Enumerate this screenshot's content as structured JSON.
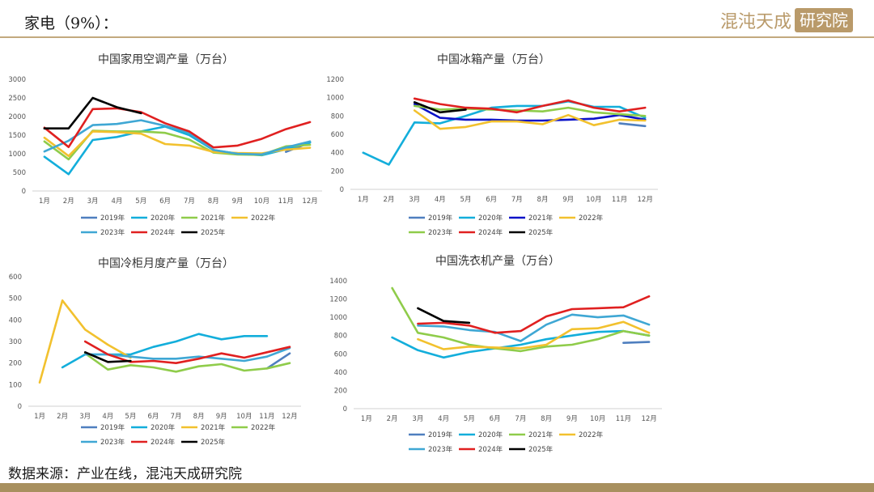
{
  "header": {
    "title": "家电（9%）："
  },
  "brand": {
    "name": "混沌天成",
    "box": "研究院"
  },
  "footer": {
    "source": "数据来源：产业在线，混沌天成研究院"
  },
  "colors": {
    "2019年": "#4f7fbf",
    "2020年": "#13aedb",
    "2021年": "#0b12c8",
    "2022年": "#f2c12e",
    "2023年": "#3fa7d4",
    "2024年": "#e02020",
    "2025年": "#000000",
    "green": "#8fcc4a"
  },
  "chart_data": [
    {
      "type": "line",
      "title": "中国家用空调产量（万台）",
      "categories": [
        "1月",
        "2月",
        "3月",
        "4月",
        "5月",
        "6月",
        "7月",
        "8月",
        "9月",
        "10月",
        "11月",
        "12月"
      ],
      "yticks": [
        0,
        500,
        1000,
        1500,
        2000,
        2500,
        3000
      ],
      "ylim": [
        0,
        3000
      ],
      "legend_rows": [
        [
          "2019年",
          "2020年",
          "2021年",
          "2022年"
        ],
        [
          "2023年",
          "2024年",
          "2025年"
        ]
      ],
      "series": [
        {
          "name": "2019年",
          "color": "#4f7fbf",
          "values": [
            null,
            null,
            null,
            null,
            null,
            null,
            null,
            null,
            null,
            null,
            1050,
            1300
          ]
        },
        {
          "name": "2020年",
          "color": "#13aedb",
          "values": [
            920,
            450,
            1370,
            1450,
            1600,
            1730,
            1500,
            1100,
            1000,
            960,
            1120,
            1300
          ]
        },
        {
          "name": "2021年",
          "color": "#8fcc4a",
          "values": [
            1330,
            850,
            1620,
            1600,
            1600,
            1560,
            1380,
            1030,
            980,
            970,
            1200,
            1240
          ]
        },
        {
          "name": "2022年",
          "color": "#f2c12e",
          "values": [
            1430,
            940,
            1600,
            1580,
            1540,
            1260,
            1220,
            1050,
            1020,
            1010,
            1110,
            1160
          ]
        },
        {
          "name": "2023年",
          "color": "#3fa7d4",
          "values": [
            1060,
            1350,
            1770,
            1800,
            1900,
            1750,
            1560,
            1100,
            1000,
            980,
            1170,
            1330
          ]
        },
        {
          "name": "2024年",
          "color": "#e02020",
          "values": [
            1700,
            1180,
            2200,
            2220,
            2120,
            1820,
            1600,
            1170,
            1220,
            1400,
            1660,
            1850
          ]
        },
        {
          "name": "2025年",
          "color": "#000000",
          "values": [
            1680,
            1680,
            2500,
            2250,
            2090,
            null,
            null,
            null,
            null,
            null,
            null,
            null
          ]
        }
      ]
    },
    {
      "type": "line",
      "title": "中国冰箱产量（万台）",
      "categories": [
        "1月",
        "2月",
        "3月",
        "4月",
        "5月",
        "6月",
        "7月",
        "8月",
        "9月",
        "10月",
        "11月",
        "12月"
      ],
      "yticks": [
        0,
        200,
        400,
        600,
        800,
        1000,
        1200
      ],
      "ylim": [
        0,
        1200
      ],
      "legend_rows": [
        [
          "2019年",
          "2020年",
          "2021年",
          "2022年"
        ],
        [
          "2023年",
          "2024年",
          "2025年"
        ]
      ],
      "series": [
        {
          "name": "2019年",
          "color": "#4f7fbf",
          "values": [
            null,
            null,
            null,
            null,
            null,
            null,
            null,
            null,
            null,
            null,
            720,
            690
          ]
        },
        {
          "name": "2020年",
          "color": "#13aedb",
          "values": [
            400,
            270,
            730,
            720,
            800,
            890,
            910,
            910,
            960,
            900,
            900,
            780
          ]
        },
        {
          "name": "2021年",
          "color": "#0b12c8",
          "values": [
            null,
            null,
            930,
            780,
            760,
            760,
            750,
            750,
            760,
            770,
            810,
            760
          ]
        },
        {
          "name": "2022年",
          "color": "#f2c12e",
          "values": [
            null,
            null,
            860,
            660,
            680,
            740,
            740,
            710,
            810,
            700,
            760,
            750
          ]
        },
        {
          "name": "2023年",
          "color": "#8fcc4a",
          "values": [
            null,
            null,
            910,
            870,
            880,
            870,
            860,
            850,
            890,
            840,
            820,
            800
          ]
        },
        {
          "name": "2024年",
          "color": "#e02020",
          "values": [
            null,
            null,
            990,
            930,
            890,
            880,
            840,
            910,
            970,
            890,
            850,
            890
          ]
        },
        {
          "name": "2025年",
          "color": "#000000",
          "values": [
            null,
            null,
            950,
            840,
            870,
            null,
            null,
            null,
            null,
            null,
            null,
            null
          ]
        }
      ]
    },
    {
      "type": "line",
      "title": "中国冷柜月度产量（万台）",
      "categories": [
        "1月",
        "2月",
        "3月",
        "4月",
        "5月",
        "6月",
        "7月",
        "8月",
        "9月",
        "10月",
        "11月",
        "12月"
      ],
      "yticks": [
        0,
        100,
        200,
        300,
        400,
        500,
        600
      ],
      "ylim": [
        0,
        600
      ],
      "legend_rows": [
        [
          "2019年",
          "2020年",
          "2021年",
          "2022年"
        ],
        [
          "2023年",
          "2024年",
          "2025年"
        ]
      ],
      "series": [
        {
          "name": "2019年",
          "color": "#4f7fbf",
          "values": [
            null,
            null,
            null,
            null,
            null,
            null,
            null,
            null,
            null,
            null,
            175,
            245
          ]
        },
        {
          "name": "2020年",
          "color": "#13aedb",
          "values": [
            null,
            180,
            240,
            240,
            240,
            275,
            300,
            335,
            310,
            325,
            325,
            null
          ]
        },
        {
          "name": "2021年",
          "color": "#f2c12e",
          "values": [
            110,
            490,
            355,
            285,
            225,
            null,
            null,
            null,
            null,
            null,
            null,
            null
          ]
        },
        {
          "name": "2022年",
          "color": "#8fcc4a",
          "values": [
            null,
            null,
            245,
            170,
            190,
            180,
            160,
            185,
            195,
            165,
            175,
            200
          ]
        },
        {
          "name": "2023年",
          "color": "#3fa7d4",
          "values": [
            null,
            null,
            240,
            240,
            230,
            220,
            220,
            230,
            220,
            210,
            230,
            270
          ]
        },
        {
          "name": "2024年",
          "color": "#e02020",
          "values": [
            null,
            null,
            300,
            240,
            205,
            210,
            200,
            220,
            245,
            225,
            250,
            275
          ]
        },
        {
          "name": "2025年",
          "color": "#000000",
          "values": [
            null,
            null,
            250,
            205,
            210,
            null,
            null,
            null,
            null,
            null,
            null,
            null
          ]
        }
      ]
    },
    {
      "type": "line",
      "title": "中国洗衣机产量（万台）",
      "categories": [
        "1月",
        "2月",
        "3月",
        "4月",
        "5月",
        "6月",
        "7月",
        "8月",
        "9月",
        "10月",
        "11月",
        "12月"
      ],
      "yticks": [
        0,
        200,
        400,
        600,
        800,
        1000,
        1200,
        1400
      ],
      "ylim": [
        0,
        1400
      ],
      "legend_rows": [
        [
          "2019年",
          "2020年",
          "2021年",
          "2022年"
        ],
        [
          "2023年",
          "2024年",
          "2025年"
        ]
      ],
      "series": [
        {
          "name": "2019年",
          "color": "#4f7fbf",
          "values": [
            null,
            null,
            null,
            null,
            null,
            null,
            null,
            null,
            null,
            null,
            720,
            730
          ]
        },
        {
          "name": "2020年",
          "color": "#13aedb",
          "values": [
            null,
            780,
            640,
            560,
            620,
            660,
            700,
            760,
            800,
            840,
            850,
            800
          ]
        },
        {
          "name": "2021年",
          "color": "#8fcc4a",
          "values": [
            null,
            1320,
            830,
            780,
            700,
            660,
            630,
            680,
            700,
            760,
            850,
            800
          ]
        },
        {
          "name": "2022年",
          "color": "#f2c12e",
          "values": [
            null,
            null,
            760,
            650,
            680,
            670,
            660,
            700,
            870,
            880,
            950,
            830
          ]
        },
        {
          "name": "2023年",
          "color": "#3fa7d4",
          "values": [
            null,
            null,
            910,
            900,
            860,
            840,
            740,
            920,
            1030,
            1000,
            1020,
            920
          ]
        },
        {
          "name": "2024年",
          "color": "#e02020",
          "values": [
            null,
            null,
            930,
            940,
            910,
            830,
            850,
            1010,
            1090,
            1100,
            1110,
            1230
          ]
        },
        {
          "name": "2025年",
          "color": "#000000",
          "values": [
            null,
            null,
            1100,
            960,
            940,
            null,
            null,
            null,
            null,
            null,
            null,
            null
          ]
        }
      ]
    }
  ]
}
